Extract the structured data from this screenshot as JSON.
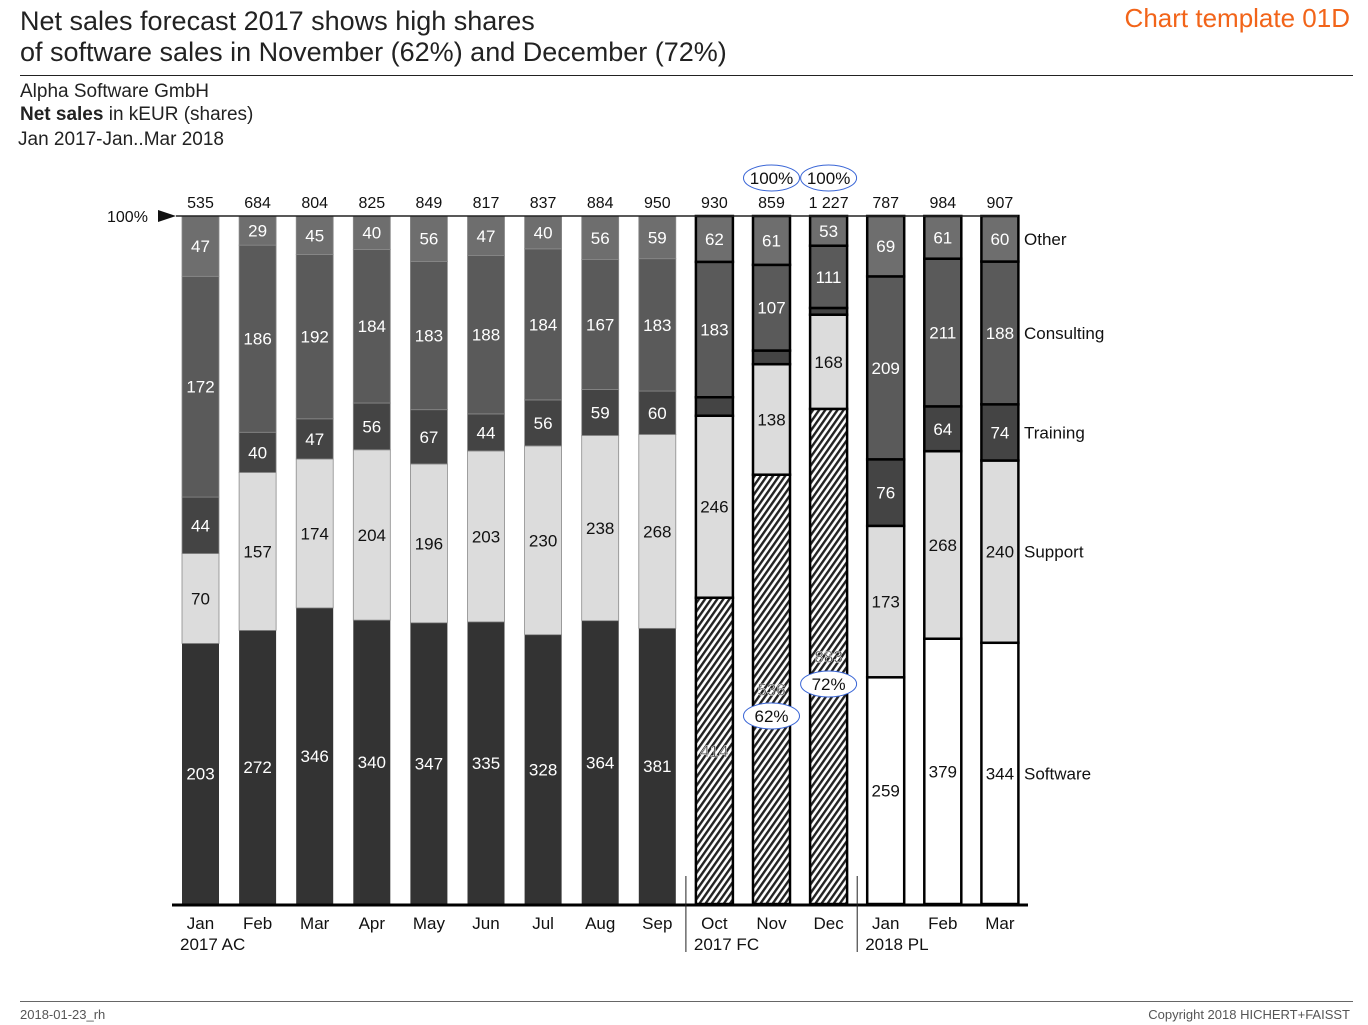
{
  "header": {
    "title_line1": "Net sales forecast 2017 shows high shares",
    "title_line2": "of software sales in November (62%) and December (72%)",
    "template_label": "Chart template 01D",
    "company": "Alpha Software GmbH",
    "measure_bold": "Net sales",
    "measure_rest": " in kEUR (shares)",
    "period": "Jan 2017-Jan..Mar 2018"
  },
  "footer": {
    "left": "2018-01-23_rh",
    "right": "Copyright 2018 HICHERT+FAISST"
  },
  "colors": {
    "accent": "#f26419",
    "software_ac": "#333333",
    "support": "#dcdcdc",
    "training": "#444444",
    "consulting": "#5a5a5a",
    "other": "#6e6e6e",
    "highlight_ellipse": "#3a66d6"
  },
  "chart_data": {
    "type": "bar",
    "stacked": true,
    "normalized": "100%",
    "title": "Net sales forecast 2017 shows high shares of software sales in November (62%) and December (72%)",
    "ylabel": "Net sales in kEUR (shares)",
    "reference_label": "100%",
    "categories": [
      "Jan",
      "Feb",
      "Mar",
      "Apr",
      "May",
      "Jun",
      "Jul",
      "Aug",
      "Sep",
      "Oct",
      "Nov",
      "Dec",
      "Jan",
      "Feb",
      "Mar"
    ],
    "scenario": [
      "AC",
      "AC",
      "AC",
      "AC",
      "AC",
      "AC",
      "AC",
      "AC",
      "AC",
      "FC",
      "FC",
      "FC",
      "PL",
      "PL",
      "PL"
    ],
    "groups": [
      {
        "label": "2017 AC",
        "from": 0,
        "to": 8
      },
      {
        "label": "2017 FC",
        "from": 9,
        "to": 11
      },
      {
        "label": "2018 PL",
        "from": 12,
        "to": 14
      }
    ],
    "totals": [
      "535",
      "684",
      "804",
      "825",
      "849",
      "817",
      "837",
      "884",
      "950",
      "930",
      "859",
      "1 227",
      "787",
      "984",
      "907"
    ],
    "series": [
      {
        "name": "Software",
        "values": [
          203,
          272,
          346,
          340,
          347,
          335,
          328,
          364,
          381,
          414,
          536,
          883,
          259,
          379,
          344
        ]
      },
      {
        "name": "Support",
        "values": [
          70,
          157,
          174,
          204,
          196,
          203,
          230,
          238,
          268,
          246,
          138,
          168,
          173,
          268,
          240
        ]
      },
      {
        "name": "Training",
        "values": [
          44,
          40,
          47,
          56,
          67,
          44,
          56,
          59,
          60,
          25,
          17,
          12,
          76,
          64,
          74
        ],
        "labeled": [
          true,
          true,
          true,
          true,
          true,
          true,
          true,
          true,
          true,
          false,
          false,
          false,
          true,
          true,
          true
        ]
      },
      {
        "name": "Consulting",
        "values": [
          172,
          186,
          192,
          184,
          183,
          188,
          184,
          167,
          183,
          183,
          107,
          111,
          209,
          211,
          188
        ]
      },
      {
        "name": "Other",
        "values": [
          47,
          29,
          45,
          40,
          56,
          47,
          40,
          56,
          59,
          62,
          61,
          53,
          69,
          61,
          60
        ]
      }
    ],
    "annotations": [
      {
        "category_index": 10,
        "series": "Software",
        "text": "62%"
      },
      {
        "category_index": 11,
        "series": "Software",
        "text": "72%"
      },
      {
        "category_index": 10,
        "position": "top",
        "text": "100%"
      },
      {
        "category_index": 11,
        "position": "top",
        "text": "100%"
      }
    ],
    "legend": "right"
  }
}
